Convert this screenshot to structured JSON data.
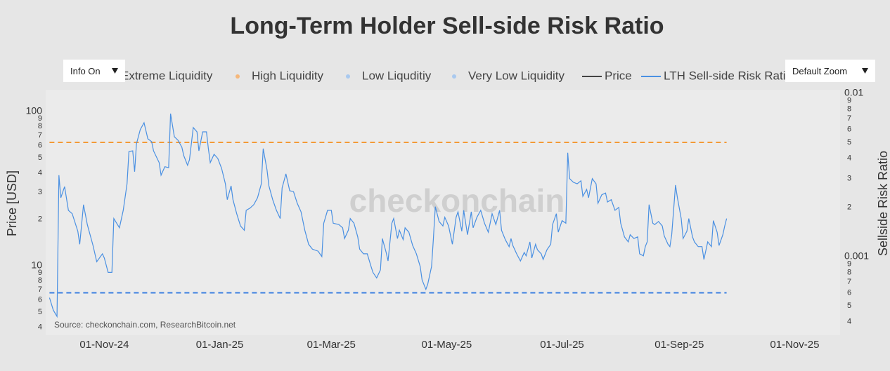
{
  "chart_data": {
    "type": "line",
    "title": "Long-Term Holder Sell-side Risk Ratio",
    "y_label": "Price [USD]",
    "y2_label": "Sellside Risk Ratio",
    "source": "Source: checkonchain.com, ResearchBitcoin.net",
    "watermark": "checkonchain",
    "log_y": true,
    "log_y2": true,
    "grid": false,
    "legend_items": [
      {
        "name": "Extreme Liquidity",
        "color": "#e05a4f",
        "symbol": "dot"
      },
      {
        "name": "High Liquidity",
        "color": "#f5b77a",
        "symbol": "dot"
      },
      {
        "name": "Low Liquditiy",
        "color": "#a9c9ef",
        "symbol": "dot"
      },
      {
        "name": "Very Low Liquidity",
        "color": "#a9c9ef",
        "symbol": "dot"
      },
      {
        "name": "Price",
        "color": "#444444",
        "symbol": "line"
      }
    ],
    "thresholds": [
      {
        "value": 0.005,
        "color": "#f39a36",
        "axis": "y2"
      },
      {
        "value": 0.0006,
        "color": "#3b7fe0",
        "axis": "y2"
      }
    ],
    "x": [
      "2024-10-03",
      "2024-10-05",
      "2024-10-07",
      "2024-10-08",
      "2024-10-09",
      "2024-10-11",
      "2024-10-13",
      "2024-10-15",
      "2024-10-18",
      "2024-10-19",
      "2024-10-21",
      "2024-10-23",
      "2024-10-26",
      "2024-10-28",
      "2024-10-31",
      "2024-11-01",
      "2024-11-03",
      "2024-11-05",
      "2024-11-06",
      "2024-11-09",
      "2024-11-11",
      "2024-11-13",
      "2024-11-14",
      "2024-11-16",
      "2024-11-17",
      "2024-11-18",
      "2024-11-20",
      "2024-11-22",
      "2024-11-24",
      "2024-11-26",
      "2024-11-27",
      "2024-11-30",
      "2024-12-01",
      "2024-12-03",
      "2024-12-05",
      "2024-12-06",
      "2024-12-08",
      "2024-12-10",
      "2024-12-12",
      "2024-12-13",
      "2024-12-15",
      "2024-12-16",
      "2024-12-18",
      "2024-12-20",
      "2024-12-21",
      "2024-12-23",
      "2024-12-25",
      "2024-12-26",
      "2024-12-27",
      "2024-12-29",
      "2024-12-31",
      "2025-01-02",
      "2025-01-04",
      "2025-01-05",
      "2025-01-07",
      "2025-01-08",
      "2025-01-10",
      "2025-01-12",
      "2025-01-14",
      "2025-01-15",
      "2025-01-17",
      "2025-01-19",
      "2025-01-21",
      "2025-01-23",
      "2025-01-24",
      "2025-01-26",
      "2025-01-27",
      "2025-01-29",
      "2025-01-31",
      "2025-02-02",
      "2025-02-03",
      "2025-02-05",
      "2025-02-07",
      "2025-02-09",
      "2025-02-11",
      "2025-02-13",
      "2025-02-15",
      "2025-02-17",
      "2025-02-19",
      "2025-02-22",
      "2025-02-24",
      "2025-02-25",
      "2025-02-27",
      "2025-03-01",
      "2025-03-02",
      "2025-03-05",
      "2025-03-07",
      "2025-03-08",
      "2025-03-10",
      "2025-03-11",
      "2025-03-13",
      "2025-03-15",
      "2025-03-16",
      "2025-03-18",
      "2025-03-20",
      "2025-03-22",
      "2025-03-23",
      "2025-03-25",
      "2025-03-27",
      "2025-03-28",
      "2025-03-30",
      "2025-03-31",
      "2025-04-02",
      "2025-04-03",
      "2025-04-05",
      "2025-04-06",
      "2025-04-08",
      "2025-04-09",
      "2025-04-11",
      "2025-04-13",
      "2025-04-15",
      "2025-04-17",
      "2025-04-18",
      "2025-04-20",
      "2025-04-21",
      "2025-04-23",
      "2025-04-24",
      "2025-04-25",
      "2025-04-27",
      "2025-04-29",
      "2025-04-30",
      "2025-05-02",
      "2025-05-04",
      "2025-05-06",
      "2025-05-07",
      "2025-05-09",
      "2025-05-10",
      "2025-05-12",
      "2025-05-14",
      "2025-05-15",
      "2025-05-17",
      "2025-05-19",
      "2025-05-21",
      "2025-05-23",
      "2025-05-25",
      "2025-05-27",
      "2025-05-29",
      "2025-05-30",
      "2025-06-01",
      "2025-06-03",
      "2025-06-04",
      "2025-06-05",
      "2025-06-07",
      "2025-06-09",
      "2025-06-11",
      "2025-06-12",
      "2025-06-14",
      "2025-06-15",
      "2025-06-17",
      "2025-06-18",
      "2025-06-20",
      "2025-06-21",
      "2025-06-23",
      "2025-06-25",
      "2025-06-26",
      "2025-06-28",
      "2025-06-29",
      "2025-07-01",
      "2025-07-03",
      "2025-07-04",
      "2025-07-05",
      "2025-07-07",
      "2025-07-09",
      "2025-07-11",
      "2025-07-12",
      "2025-07-14",
      "2025-07-15",
      "2025-07-17",
      "2025-07-19",
      "2025-07-20",
      "2025-07-22",
      "2025-07-24",
      "2025-07-25",
      "2025-07-27",
      "2025-07-29",
      "2025-07-31",
      "2025-08-01",
      "2025-08-03",
      "2025-08-05",
      "2025-08-06",
      "2025-08-08",
      "2025-08-10",
      "2025-08-11",
      "2025-08-13",
      "2025-08-14",
      "2025-08-15",
      "2025-08-16",
      "2025-08-18",
      "2025-08-19",
      "2025-08-21",
      "2025-08-23",
      "2025-08-24",
      "2025-08-26",
      "2025-08-27",
      "2025-08-28",
      "2025-08-30",
      "2025-08-31",
      "2025-09-02",
      "2025-09-03",
      "2025-09-05",
      "2025-09-06",
      "2025-09-08",
      "2025-09-09",
      "2025-09-11",
      "2025-09-13",
      "2025-09-14",
      "2025-09-16",
      "2025-09-18",
      "2025-09-19",
      "2025-09-21",
      "2025-09-22",
      "2025-09-24",
      "2025-09-25",
      "2025-09-26"
    ],
    "series": [
      {
        "name": "LTH Sell-side Risk Ratio",
        "color": "#4a90e2",
        "axis": "y2",
        "values": [
          0.00056,
          0.00047,
          0.00043,
          0.00315,
          0.00229,
          0.00268,
          0.00192,
          0.00183,
          0.00143,
          0.00119,
          0.00208,
          0.00157,
          0.00117,
          0.00093,
          0.00104,
          0.00098,
          0.0008,
          0.0008,
          0.00171,
          0.0015,
          0.00192,
          0.00279,
          0.0044,
          0.00444,
          0.00331,
          0.0049,
          0.00598,
          0.0066,
          0.00526,
          0.00505,
          0.00444,
          0.00376,
          0.00315,
          0.00355,
          0.0035,
          0.0075,
          0.00542,
          0.00515,
          0.00467,
          0.00415,
          0.00362,
          0.00391,
          0.00617,
          0.0058,
          0.00444,
          0.0058,
          0.0058,
          0.00458,
          0.00376,
          0.00423,
          0.00399,
          0.00347,
          0.00279,
          0.00223,
          0.00271,
          0.00223,
          0.00183,
          0.00154,
          0.00145,
          0.00192,
          0.00198,
          0.00208,
          0.00229,
          0.00279,
          0.00458,
          0.0034,
          0.00271,
          0.00223,
          0.00192,
          0.00171,
          0.00263,
          0.00321,
          0.00253,
          0.0025,
          0.00212,
          0.00188,
          0.00145,
          0.00119,
          0.00111,
          0.00108,
          0.001,
          0.0016,
          0.00192,
          0.00192,
          0.0016,
          0.00157,
          0.0015,
          0.00129,
          0.00145,
          0.00171,
          0.0016,
          0.00132,
          0.00111,
          0.00104,
          0.00104,
          0.00087,
          0.0008,
          0.00074,
          0.00083,
          0.00129,
          0.00106,
          0.00094,
          0.0016,
          0.00171,
          0.00129,
          0.00145,
          0.00127,
          0.0015,
          0.00141,
          0.00117,
          0.00104,
          0.00087,
          0.00072,
          0.00063,
          0.00068,
          0.00087,
          0.00129,
          0.00202,
          0.00164,
          0.00154,
          0.00174,
          0.00154,
          0.00119,
          0.00174,
          0.00188,
          0.00143,
          0.00192,
          0.00136,
          0.00188,
          0.0015,
          0.00174,
          0.00192,
          0.0016,
          0.00141,
          0.00183,
          0.00157,
          0.00192,
          0.00145,
          0.00127,
          0.00115,
          0.00129,
          0.00117,
          0.00104,
          0.00094,
          0.00106,
          0.00101,
          0.00123,
          0.00098,
          0.00119,
          0.0011,
          0.00104,
          0.00096,
          0.0011,
          0.00119,
          0.00157,
          0.00183,
          0.00141,
          0.00166,
          0.0016,
          0.00432,
          0.003,
          0.00285,
          0.00279,
          0.00291,
          0.00234,
          0.00258,
          0.00229,
          0.003,
          0.00279,
          0.00212,
          0.00239,
          0.00245,
          0.00216,
          0.00223,
          0.00192,
          0.002,
          0.0016,
          0.00132,
          0.00123,
          0.00136,
          0.00129,
          0.00132,
          0.00104,
          0.00101,
          0.00115,
          0.00123,
          0.00208,
          0.0016,
          0.00157,
          0.00164,
          0.00154,
          0.00134,
          0.00119,
          0.00115,
          0.00136,
          0.00274,
          0.00229,
          0.00171,
          0.00129,
          0.00143,
          0.00171,
          0.00132,
          0.00123,
          0.00115,
          0.00115,
          0.00096,
          0.00123,
          0.00115,
          0.00166,
          0.00141,
          0.00117,
          0.00136,
          0.00154,
          0.00171
        ]
      }
    ],
    "xlim": [
      "2024-10-01",
      "2025-11-25"
    ],
    "xticks": [
      {
        "value": "2024-11-01",
        "label": "01-Nov-24"
      },
      {
        "value": "2025-01-01",
        "label": "01-Jan-25"
      },
      {
        "value": "2025-03-01",
        "label": "01-Mar-25"
      },
      {
        "value": "2025-05-01",
        "label": "01-May-25"
      },
      {
        "value": "2025-07-01",
        "label": "01-Jul-25"
      },
      {
        "value": "2025-09-01",
        "label": "01-Sep-25"
      },
      {
        "value": "2025-11-01",
        "label": "01-Nov-25"
      }
    ],
    "ylim": [
      3.55,
      138
    ],
    "yticks": [
      4,
      5,
      6,
      7,
      8,
      9,
      10,
      {
        "value": 20,
        "label": "2"
      },
      {
        "value": 30,
        "label": "3"
      },
      {
        "value": 40,
        "label": "4"
      },
      {
        "value": 50,
        "label": "5"
      },
      {
        "value": 60,
        "label": "6"
      },
      {
        "value": 70,
        "label": "7"
      },
      {
        "value": 80,
        "label": "8"
      },
      {
        "value": 90,
        "label": "9"
      },
      100
    ],
    "y2lim": [
      0.00033,
      0.0105
    ],
    "y2ticks": [
      {
        "value": 0.0004,
        "label": "4"
      },
      {
        "value": 0.0005,
        "label": "5"
      },
      {
        "value": 0.0006,
        "label": "6"
      },
      {
        "value": 0.0007,
        "label": "7"
      },
      {
        "value": 0.0008,
        "label": "8"
      },
      {
        "value": 0.0009,
        "label": "9"
      },
      0.001,
      {
        "value": 0.002,
        "label": "2"
      },
      {
        "value": 0.003,
        "label": "3"
      },
      {
        "value": 0.004,
        "label": "4"
      },
      {
        "value": 0.005,
        "label": "5"
      },
      {
        "value": 0.006,
        "label": "6"
      },
      {
        "value": 0.007,
        "label": "7"
      },
      {
        "value": 0.008,
        "label": "8"
      },
      {
        "value": 0.009,
        "label": "9"
      },
      0.01
    ]
  },
  "controls": {
    "info": "Info On",
    "zoom": "Default Zoom"
  }
}
